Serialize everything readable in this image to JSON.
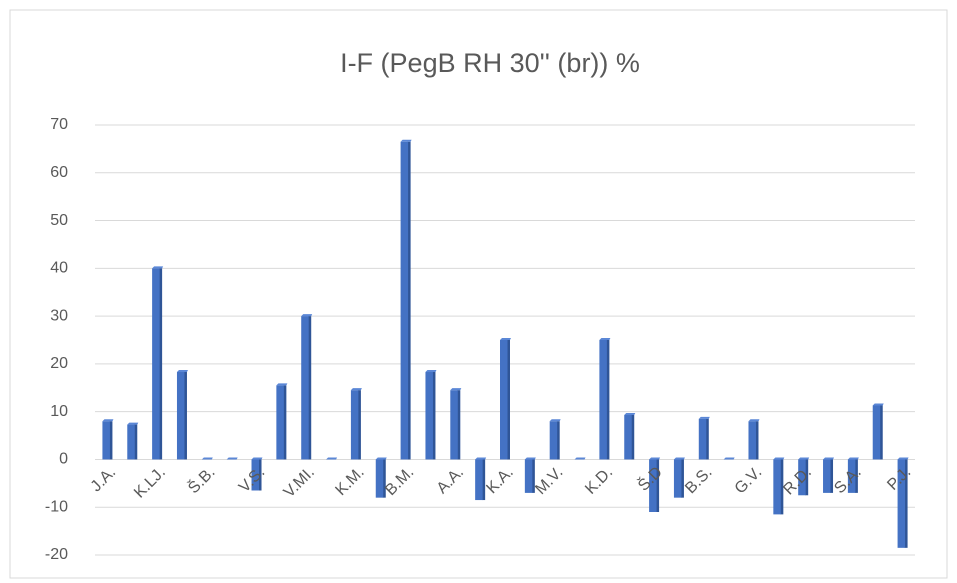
{
  "chart_data": {
    "type": "bar",
    "title": "I-F (PegB RH 30''  (br)) %",
    "categories": [
      "J.A.",
      null,
      "K.LJ.",
      null,
      "Š.B.",
      null,
      "V.S.",
      null,
      "V.MI.",
      null,
      "K.M.",
      null,
      "B.M.",
      null,
      "A.A.",
      null,
      "K.A.",
      null,
      "M.V.",
      null,
      "K.D.",
      null,
      "Š.D",
      null,
      "B.S.",
      null,
      "G.V.",
      null,
      "R.D.",
      null,
      "S.A.",
      null,
      "P.J."
    ],
    "values": [
      8,
      7.3,
      40,
      18.3,
      0,
      0,
      -6.5,
      15.5,
      30,
      0,
      14.5,
      -8,
      66.5,
      18.3,
      14.5,
      -8.5,
      25,
      -7,
      8,
      0,
      25,
      9.3,
      -11,
      -8,
      8.5,
      0,
      8,
      -11.5,
      -7.5,
      -7,
      -7,
      11.3,
      -18.5
    ],
    "color": "#4472c4",
    "ylim": [
      -20,
      70
    ],
    "yticks": [
      -20,
      -10,
      0,
      10,
      20,
      30,
      40,
      50,
      60,
      70
    ],
    "grid": true
  }
}
